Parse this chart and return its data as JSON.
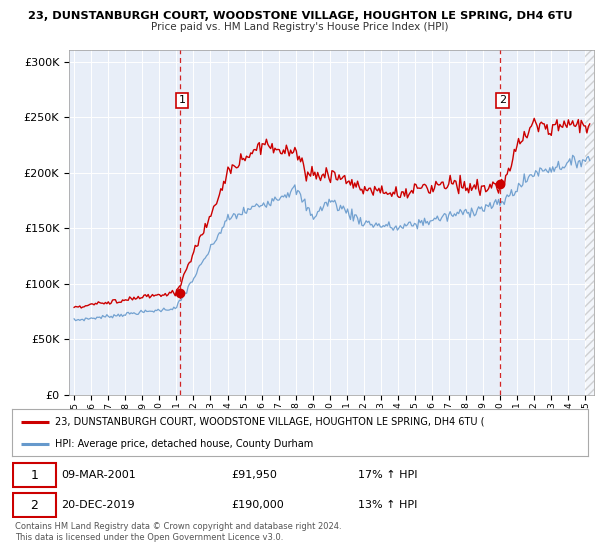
{
  "title1": "23, DUNSTANBURGH COURT, WOODSTONE VILLAGE, HOUGHTON LE SPRING, DH4 6TU",
  "title2": "Price paid vs. HM Land Registry's House Price Index (HPI)",
  "property_label": "23, DUNSTANBURGH COURT, WOODSTONE VILLAGE, HOUGHTON LE SPRING, DH4 6TU (",
  "hpi_label": "HPI: Average price, detached house, County Durham",
  "annotation1": {
    "num": "1",
    "date": "09-MAR-2001",
    "price": "£91,950",
    "pct": "17% ↑ HPI",
    "x_year": 2001.19
  },
  "annotation2": {
    "num": "2",
    "date": "20-DEC-2019",
    "price": "£190,000",
    "pct": "13% ↑ HPI",
    "x_year": 2019.97
  },
  "property_color": "#cc0000",
  "hpi_color": "#6699cc",
  "background_color": "#e8eef8",
  "plot_bg": "#ffffff",
  "vline_color": "#cc0000",
  "ylim": [
    0,
    310000
  ],
  "xlim_start": 1994.7,
  "xlim_end": 2025.5,
  "yticks": [
    0,
    50000,
    100000,
    150000,
    200000,
    250000,
    300000
  ],
  "ylabels": [
    "£0",
    "£50K",
    "£100K",
    "£150K",
    "£200K",
    "£250K",
    "£300K"
  ],
  "footer1": "Contains HM Land Registry data © Crown copyright and database right 2024.",
  "footer2": "This data is licensed under the Open Government Licence v3.0."
}
